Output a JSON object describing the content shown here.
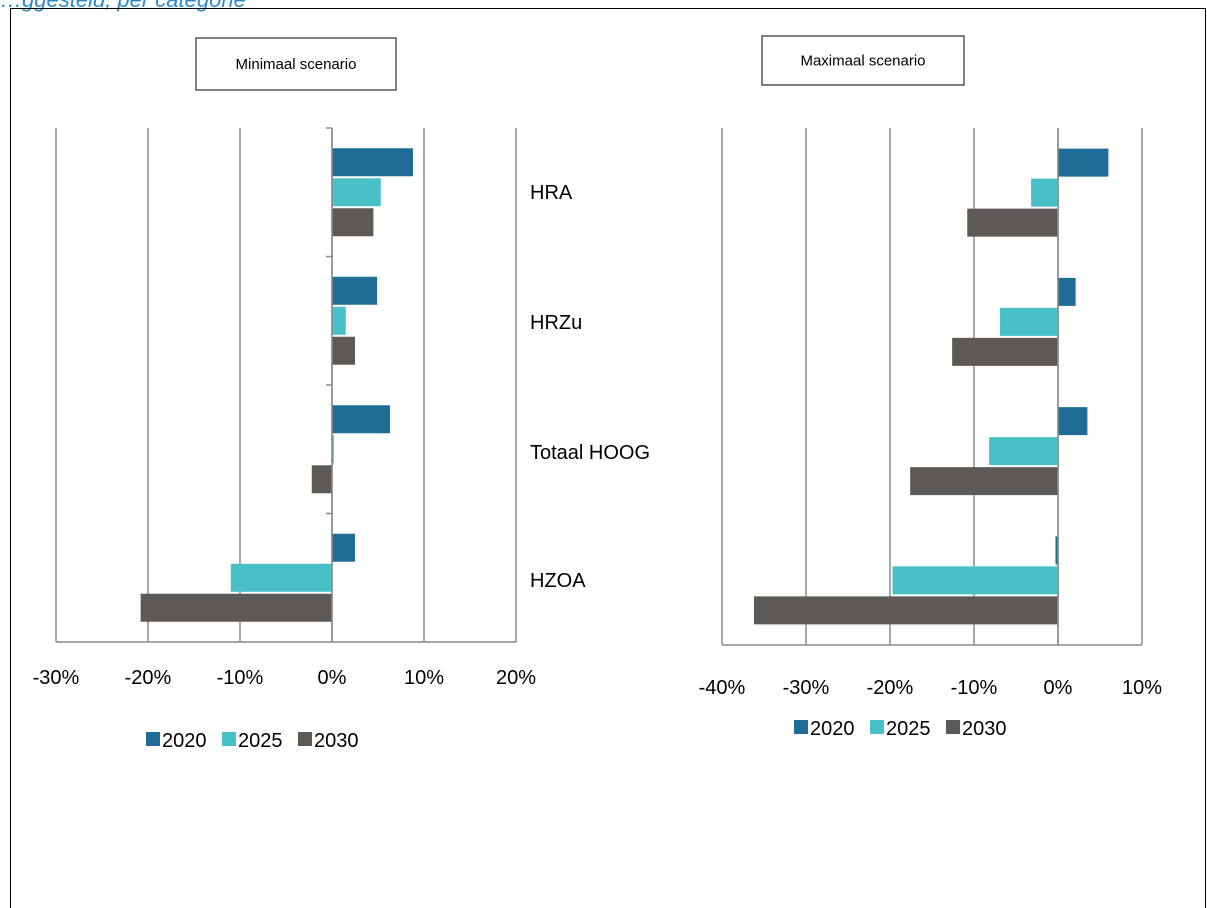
{
  "header": {
    "text": "…ggesteld, per categorie"
  },
  "colors": {
    "2020": "#1f6d97",
    "2025": "#47c1c5",
    "2030": "#5d5957",
    "grid": "#8c8c8c"
  },
  "chart_data": [
    {
      "type": "bar",
      "orientation": "horizontal",
      "title": "Minimaal scenario",
      "categories": [
        "HRA",
        "HRZu",
        "Totaal HOOG",
        "HZOA"
      ],
      "series": [
        {
          "name": "2020",
          "values": [
            0.088,
            0.049,
            0.063,
            0.025
          ]
        },
        {
          "name": "2025",
          "values": [
            0.053,
            0.015,
            0.002,
            -0.11
          ]
        },
        {
          "name": "2030",
          "values": [
            0.045,
            0.025,
            -0.022,
            -0.208
          ]
        }
      ],
      "xlim": [
        -0.3,
        0.2
      ],
      "xticks": [
        "-30%",
        "-20%",
        "-10%",
        "0%",
        "10%",
        "20%"
      ],
      "grid": true,
      "legend": "bottom"
    },
    {
      "type": "bar",
      "orientation": "horizontal",
      "title": "Maximaal scenario",
      "categories": [
        "HRA",
        "HRZu",
        "Totaal HOOG",
        "HZOA"
      ],
      "series": [
        {
          "name": "2020",
          "values": [
            0.06,
            0.021,
            0.035,
            -0.003
          ]
        },
        {
          "name": "2025",
          "values": [
            -0.032,
            -0.069,
            -0.082,
            -0.197
          ]
        },
        {
          "name": "2030",
          "values": [
            -0.108,
            -0.126,
            -0.176,
            -0.362
          ]
        }
      ],
      "xlim": [
        -0.4,
        0.1
      ],
      "xticks": [
        "-40%",
        "-30%",
        "-20%",
        "-10%",
        "0%",
        "10%"
      ],
      "grid": true,
      "legend": "bottom"
    }
  ]
}
